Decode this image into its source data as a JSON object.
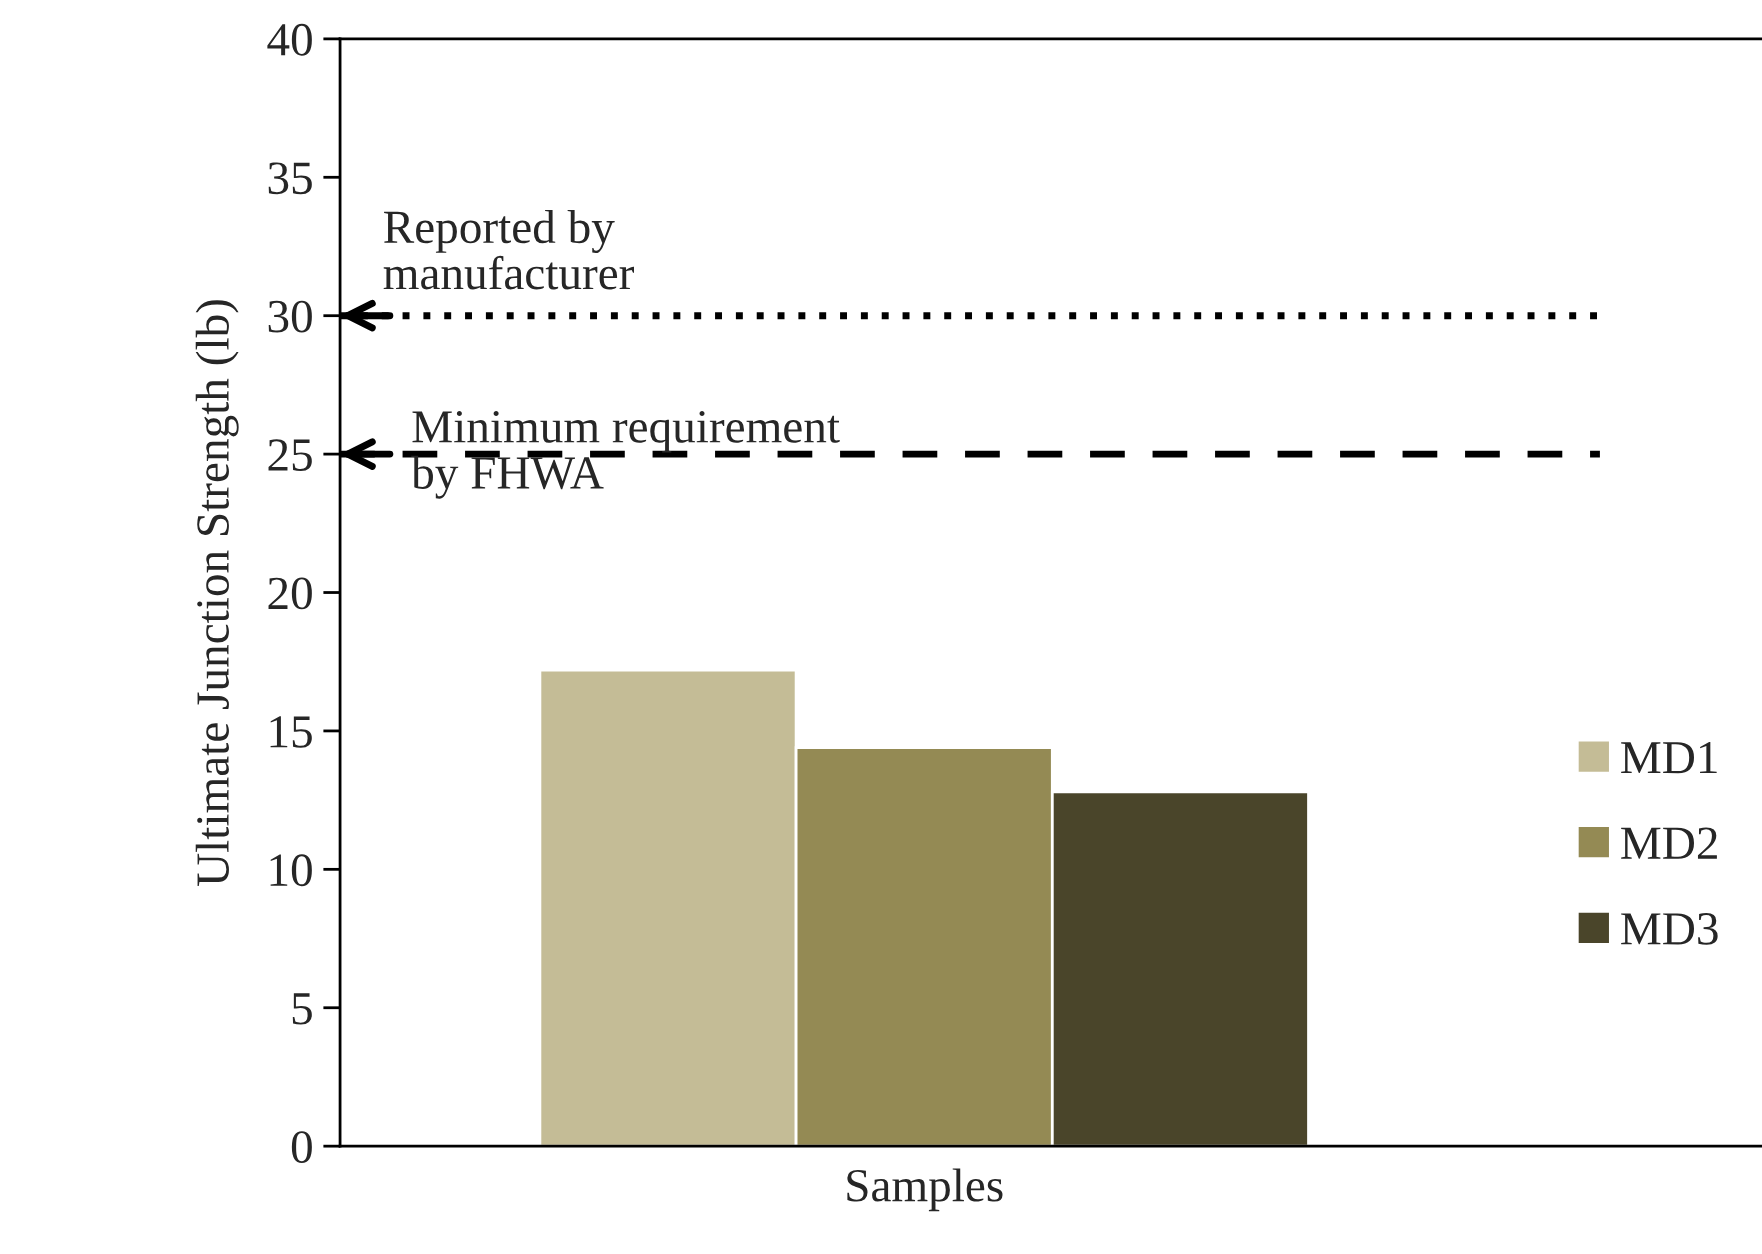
{
  "chart_data": {
    "type": "bar",
    "ylabel": "Ultimate Junction Strength (lb)",
    "categories": [
      "Samples"
    ],
    "series": [
      {
        "name": "MD1",
        "color": "#c4bc96",
        "values": [
          17.2
        ]
      },
      {
        "name": "MD2",
        "color": "#948a54",
        "values": [
          14.4
        ]
      },
      {
        "name": "MD3",
        "color": "#4a452a",
        "values": [
          12.8
        ]
      }
    ],
    "ylim": [
      0,
      40
    ],
    "yticks": [
      0,
      5,
      10,
      15,
      20,
      25,
      30,
      35,
      40
    ],
    "ref_lines": [
      {
        "axis": "y",
        "value": 30,
        "label": "Reported by\nmanufacturer",
        "line_style": "dotted",
        "color": "#000000"
      },
      {
        "axis": "y",
        "value": 25,
        "label": "Minimum requirement\nby FHWA",
        "line_style": "dashed",
        "color": "#000000"
      }
    ],
    "legend": "right",
    "grid": false
  }
}
